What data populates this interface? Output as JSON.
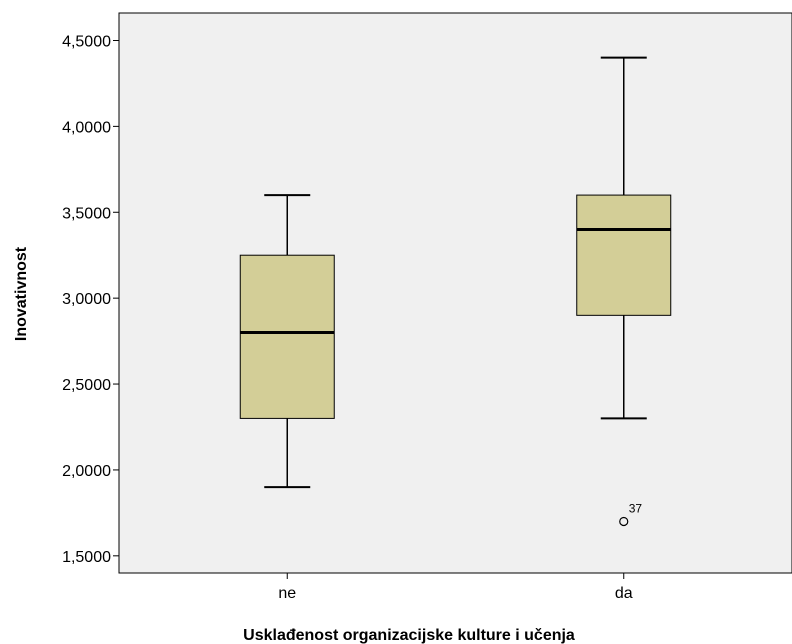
{
  "chart_data": {
    "type": "boxplot",
    "title": "",
    "xlabel": "Usklađenost organizacijske kulture i učenja",
    "ylabel": "Inovativnost",
    "ylim": [
      1.4,
      4.66
    ],
    "yticks": [
      1.5,
      2.0,
      2.5,
      3.0,
      3.5,
      4.0,
      4.5
    ],
    "ytick_labels": [
      "1,5000",
      "2,0000",
      "2,5000",
      "3,0000",
      "3,5000",
      "4,0000",
      "4,5000"
    ],
    "categories": [
      "ne",
      "da"
    ],
    "boxes": [
      {
        "category": "ne",
        "whisker_low": 1.9,
        "q1": 2.3,
        "median": 2.8,
        "q3": 3.25,
        "whisker_high": 3.6,
        "outliers": []
      },
      {
        "category": "da",
        "whisker_low": 2.3,
        "q1": 2.9,
        "median": 3.4,
        "q3": 3.6,
        "whisker_high": 4.4,
        "outliers": [
          {
            "value": 1.7,
            "label": "37"
          }
        ]
      }
    ],
    "grid": false,
    "colors": {
      "plot_background": "#f0f0f0",
      "box_fill": "#d3ce97",
      "line": "#000000"
    }
  }
}
